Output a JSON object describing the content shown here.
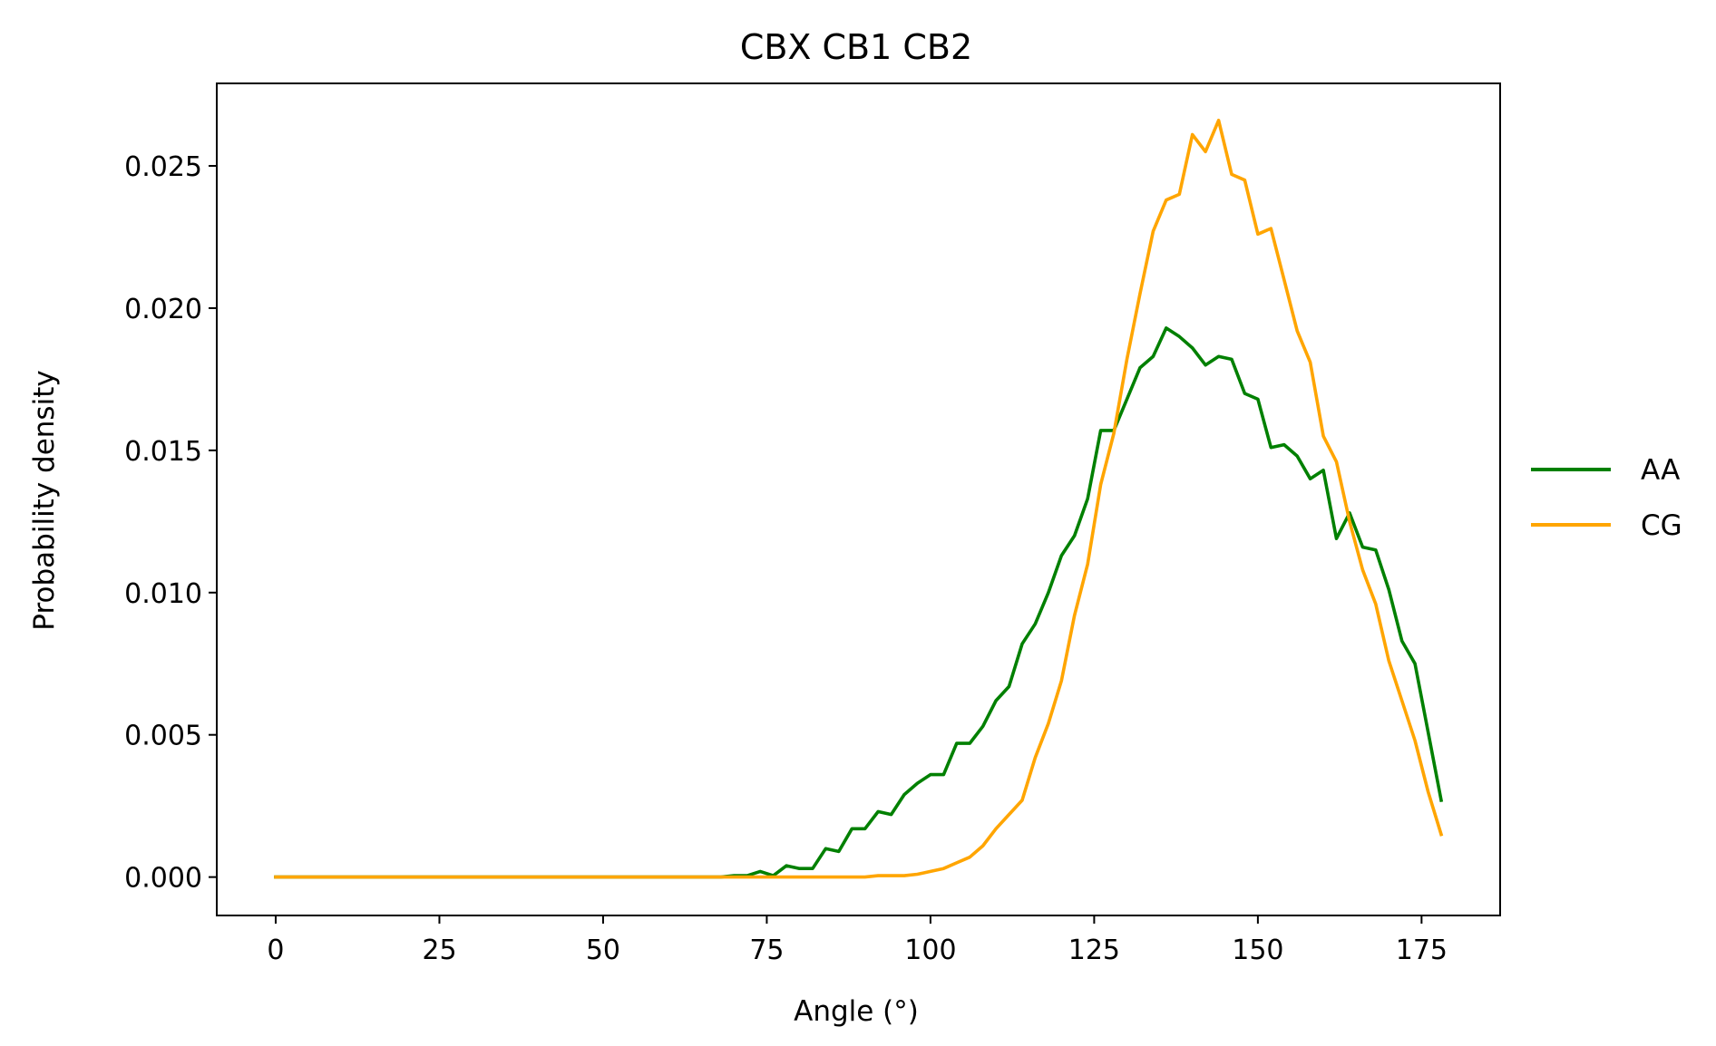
{
  "chart_data": {
    "type": "line",
    "title": "CBX CB1 CB2",
    "xlabel": "Angle (°)",
    "ylabel": "Probability density",
    "xlim": [
      -9,
      187
    ],
    "ylim": [
      -0.00135,
      0.0279
    ],
    "xticks": [
      0,
      25,
      50,
      75,
      100,
      125,
      150,
      175
    ],
    "xtick_labels": [
      "0",
      "25",
      "50",
      "75",
      "100",
      "125",
      "150",
      "175"
    ],
    "yticks": [
      0.0,
      0.005,
      0.01,
      0.015,
      0.02,
      0.025
    ],
    "ytick_labels": [
      "0.000",
      "0.005",
      "0.010",
      "0.015",
      "0.020",
      "0.025"
    ],
    "grid": false,
    "legend_position": "right, outside plot",
    "series": [
      {
        "name": "AA",
        "color": "#008000",
        "x": [
          0,
          68,
          70,
          72,
          74,
          76,
          78,
          80,
          82,
          84,
          86,
          88,
          90,
          92,
          94,
          96,
          98,
          100,
          102,
          104,
          106,
          108,
          110,
          112,
          114,
          116,
          118,
          120,
          122,
          124,
          126,
          128,
          130,
          132,
          134,
          136,
          138,
          140,
          142,
          144,
          146,
          148,
          150,
          152,
          154,
          156,
          158,
          160,
          162,
          164,
          166,
          168,
          170,
          172,
          174,
          176,
          178
        ],
        "y": [
          0.0,
          0.0,
          5e-05,
          5e-05,
          0.0002,
          5e-05,
          0.0004,
          0.0003,
          0.0003,
          0.001,
          0.0009,
          0.0017,
          0.0017,
          0.0023,
          0.0022,
          0.0029,
          0.0033,
          0.0036,
          0.0036,
          0.0047,
          0.0047,
          0.0053,
          0.0062,
          0.0067,
          0.0082,
          0.0089,
          0.01,
          0.0113,
          0.012,
          0.0133,
          0.0157,
          0.0157,
          0.0168,
          0.0179,
          0.0183,
          0.0193,
          0.019,
          0.0186,
          0.018,
          0.0183,
          0.0182,
          0.017,
          0.0168,
          0.0151,
          0.0152,
          0.0148,
          0.014,
          0.0143,
          0.0119,
          0.0128,
          0.0116,
          0.0115,
          0.0101,
          0.0083,
          0.0075,
          0.0051,
          0.0027
        ]
      },
      {
        "name": "CG",
        "color": "#FFA500",
        "x": [
          0,
          88,
          90,
          92,
          94,
          96,
          98,
          100,
          102,
          104,
          106,
          108,
          110,
          112,
          114,
          116,
          118,
          120,
          122,
          124,
          126,
          128,
          130,
          132,
          134,
          136,
          138,
          140,
          142,
          144,
          146,
          148,
          150,
          152,
          154,
          156,
          158,
          160,
          162,
          164,
          166,
          168,
          170,
          172,
          174,
          176,
          178
        ],
        "y": [
          0.0,
          0.0,
          0.0,
          5e-05,
          5e-05,
          5e-05,
          0.0001,
          0.0002,
          0.0003,
          0.0005,
          0.0007,
          0.0011,
          0.0017,
          0.0022,
          0.0027,
          0.0042,
          0.0054,
          0.0069,
          0.0092,
          0.011,
          0.0138,
          0.0156,
          0.0182,
          0.0205,
          0.0227,
          0.0238,
          0.024,
          0.0261,
          0.0255,
          0.0266,
          0.0247,
          0.0245,
          0.0226,
          0.0228,
          0.021,
          0.0192,
          0.0181,
          0.0155,
          0.0146,
          0.0125,
          0.0108,
          0.0096,
          0.0076,
          0.0062,
          0.0048,
          0.003,
          0.0015
        ]
      }
    ]
  }
}
